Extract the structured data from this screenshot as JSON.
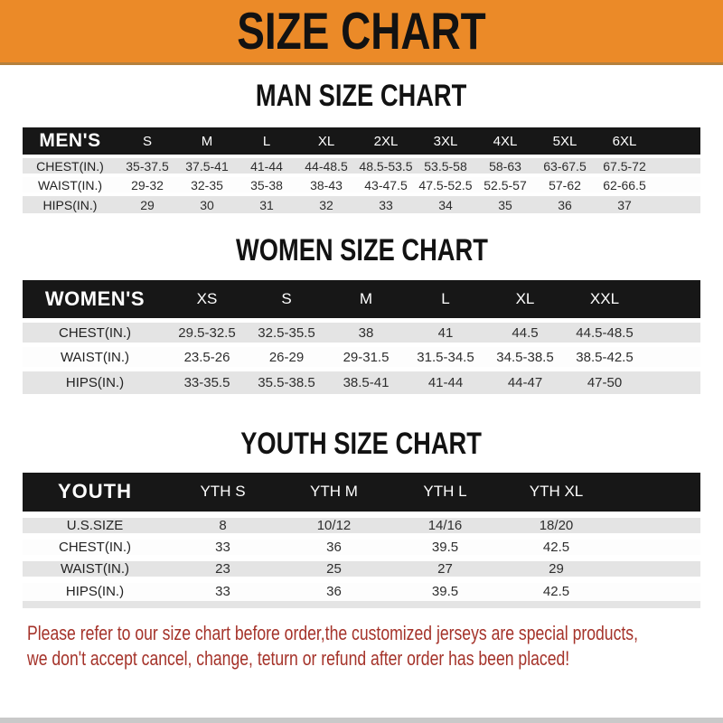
{
  "banner": {
    "title": "SIZE CHART",
    "bg_color": "#EB8A28",
    "text_color": "#121212"
  },
  "sections": [
    {
      "heading": "MAN SIZE CHART",
      "table": {
        "header_label": "MEN'S",
        "columns": [
          "S",
          "M",
          "L",
          "XL",
          "2XL",
          "3XL",
          "4XL",
          "5XL",
          "6XL"
        ],
        "rows": [
          {
            "label": "CHEST(IN.)",
            "values": [
              "35-37.5",
              "37.5-41",
              "41-44",
              "44-48.5",
              "48.5-53.5",
              "53.5-58",
              "58-63",
              "63-67.5",
              "67.5-72"
            ]
          },
          {
            "label": "WAIST(IN.)",
            "values": [
              "29-32",
              "32-35",
              "35-38",
              "38-43",
              "43-47.5",
              "47.5-52.5",
              "52.5-57",
              "57-62",
              "62-66.5"
            ]
          },
          {
            "label": "HIPS(IN.)",
            "values": [
              "29",
              "30",
              "31",
              "32",
              "33",
              "34",
              "35",
              "36",
              "37"
            ]
          }
        ]
      }
    },
    {
      "heading": "WOMEN SIZE CHART",
      "table": {
        "header_label": "WOMEN'S",
        "columns": [
          "XS",
          "S",
          "M",
          "L",
          "XL",
          "XXL"
        ],
        "rows": [
          {
            "label": "CHEST(IN.)",
            "values": [
              "29.5-32.5",
              "32.5-35.5",
              "38",
              "41",
              "44.5",
              "44.5-48.5"
            ]
          },
          {
            "label": "WAIST(IN.)",
            "values": [
              "23.5-26",
              "26-29",
              "29-31.5",
              "31.5-34.5",
              "34.5-38.5",
              "38.5-42.5"
            ]
          },
          {
            "label": "HIPS(IN.)",
            "values": [
              "33-35.5",
              "35.5-38.5",
              "38.5-41",
              "41-44",
              "44-47",
              "47-50"
            ]
          }
        ]
      }
    },
    {
      "heading": "YOUTH SIZE CHART",
      "table": {
        "header_label": "YOUTH",
        "columns": [
          "YTH S",
          "YTH M",
          "YTH L",
          "YTH XL"
        ],
        "rows": [
          {
            "label": "U.S.SIZE",
            "values": [
              "8",
              "10/12",
              "14/16",
              "18/20"
            ]
          },
          {
            "label": "CHEST(IN.)",
            "values": [
              "33",
              "36",
              "39.5",
              "42.5"
            ]
          },
          {
            "label": "WAIST(IN.)",
            "values": [
              "23",
              "25",
              "27",
              "29"
            ]
          },
          {
            "label": "HIPS(IN.)",
            "values": [
              "33",
              "36",
              "39.5",
              "42.5"
            ]
          }
        ]
      }
    }
  ],
  "footer": {
    "line1": "Please refer to our size chart before order,the customized jerseys are special products,",
    "line2": "we don't accept cancel, change, teturn or refund after order has been placed!",
    "text_color": "#A5332A"
  },
  "style_colors": {
    "header_row_bg": "#171717",
    "stripe_gray": "#e4e4e4",
    "stripe_white": "#fdfdfd"
  }
}
